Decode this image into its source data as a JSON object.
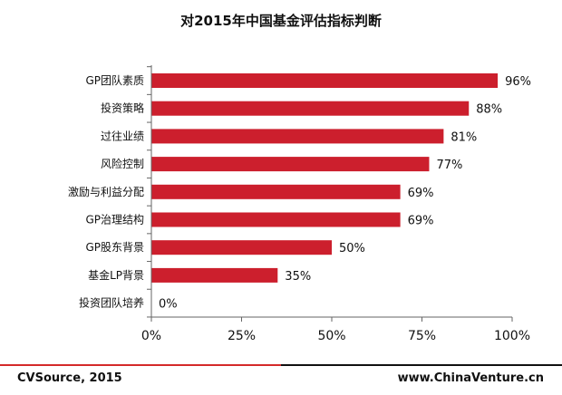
{
  "chart_data": {
    "type": "bar",
    "orientation": "horizontal",
    "title": "对2015年中国基金评估指标判断",
    "categories": [
      "GP团队素质",
      "投资策略",
      "过往业绩",
      "风险控制",
      "激励与利益分配",
      "GP治理结构",
      "GP股东背景",
      "基金LP背景",
      "投资团队培养"
    ],
    "values": [
      96,
      88,
      81,
      77,
      69,
      69,
      50,
      35,
      0
    ],
    "value_labels": [
      "96%",
      "88%",
      "81%",
      "77%",
      "69%",
      "69%",
      "50%",
      "35%",
      "0%"
    ],
    "xlim": [
      0,
      100
    ],
    "xticks": [
      "0%",
      "25%",
      "50%",
      "75%",
      "100%"
    ],
    "xlabel": "",
    "ylabel": "",
    "bar_color": "#cc1f2d",
    "grid": false,
    "legend": "none"
  },
  "footer": {
    "source": "CVSource, 2015",
    "website": "www.ChinaVenture.cn",
    "line_colors": [
      "#d42a2a",
      "#111111"
    ]
  }
}
